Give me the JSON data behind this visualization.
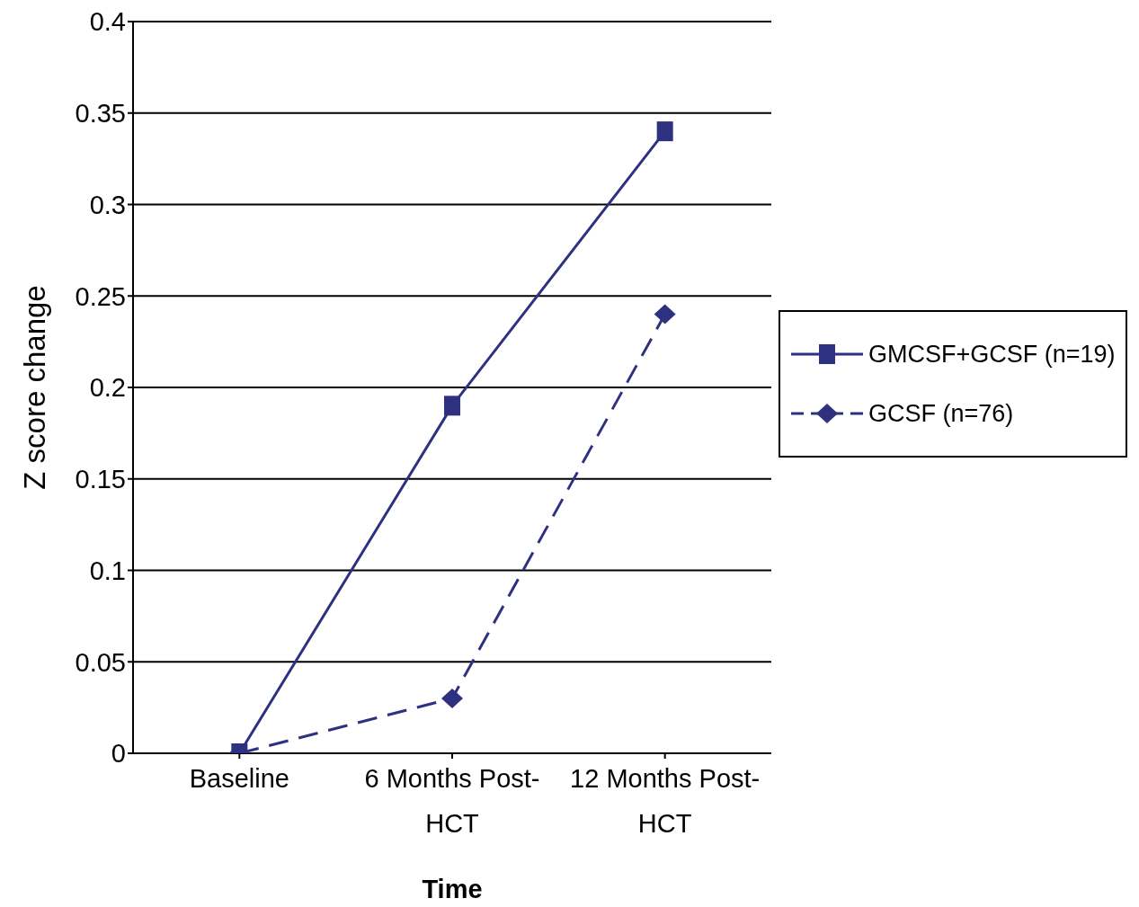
{
  "chart_data": {
    "type": "line",
    "xlabel": "Time",
    "ylabel": "Z score change",
    "categories": [
      "Baseline",
      "6 Months Post-HCT",
      "12 Months Post-HCT"
    ],
    "series": [
      {
        "name": "GMCSF+GCSF (n=19)",
        "color": "#2e3180",
        "values": [
          0,
          0.19,
          0.34
        ],
        "marker": "square",
        "line_style": "solid"
      },
      {
        "name": "GCSF (n=76)",
        "color": "#2e3180",
        "values": [
          0,
          0.03,
          0.24
        ],
        "marker": "diamond",
        "line_style": "dashed"
      }
    ],
    "ylim": [
      0,
      0.4
    ],
    "yticks": [
      0,
      0.05,
      0.1,
      0.15,
      0.2,
      0.25,
      0.3,
      0.35,
      0.4
    ],
    "grid": "y",
    "legend": "right"
  }
}
